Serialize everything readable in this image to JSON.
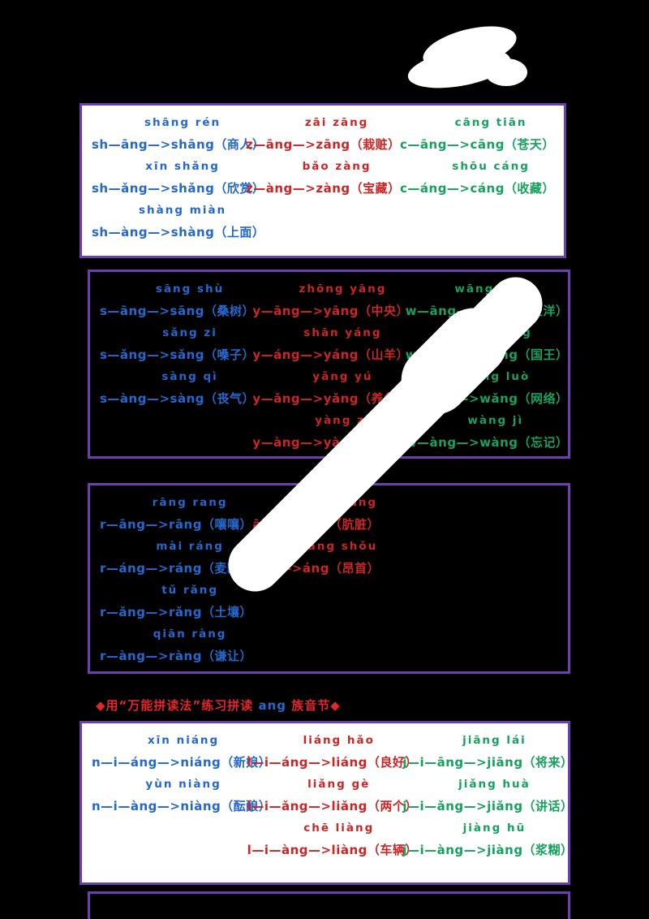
{
  "colors": {
    "blue": "#2468cd",
    "red": "#cc2525",
    "green": "#17a15e",
    "purple": "#6d3fae",
    "header_red": "#e4252b",
    "page_bg": "#000000"
  },
  "header": {
    "prefix": "◆用“万能拼读法”练习拼读 ",
    "highlight": "ang",
    "suffix": " 族音节◆"
  },
  "boxes": [
    {
      "id": "box1",
      "columns": [
        {
          "color": "blue",
          "entries": [
            {
              "word": "shāng rén",
              "formula": "sh—āng—>shāng（商人）"
            },
            {
              "word": "xīn shǎng",
              "formula": "sh—ǎng—>shǎng（欣赏）"
            },
            {
              "word": "shàng miàn",
              "formula": "sh—àng—>shàng（上面）"
            }
          ]
        },
        {
          "color": "red",
          "entries": [
            {
              "word": "zāi zāng",
              "formula": "z—āng—>zāng（栽赃）"
            },
            {
              "word": "bǎo zàng",
              "formula": "z—àng—>zàng（宝藏）"
            }
          ]
        },
        {
          "color": "green",
          "entries": [
            {
              "word": "cāng tiān",
              "formula": "c—āng—>cāng（苍天）"
            },
            {
              "word": "shōu cáng",
              "formula": "c—áng—>cáng（收藏）"
            }
          ]
        }
      ]
    },
    {
      "id": "box2",
      "columns": [
        {
          "color": "blue",
          "entries": [
            {
              "word": "sāng shù",
              "formula": "s—āng—>sāng（桑树）"
            },
            {
              "word": "sǎng zi",
              "formula": "s—ǎng—>sǎng（嗓子）"
            },
            {
              "word": "sàng qì",
              "formula": "s—àng—>sàng（丧气）"
            }
          ]
        },
        {
          "color": "red",
          "entries": [
            {
              "word": "zhōng yāng",
              "formula": "y—āng—>yāng（中央）"
            },
            {
              "word": "shān yáng",
              "formula": "y—áng—>yáng（山羊）"
            },
            {
              "word": "yǎng yú",
              "formula": "y—ǎng—>yǎng（养鱼）"
            },
            {
              "word": "yàng zi",
              "formula": "y—àng—>yàng（样子）"
            }
          ]
        },
        {
          "color": "green",
          "entries": [
            {
              "word": "wāng yáng",
              "formula": "w—āng—>wāng（汪洋）"
            },
            {
              "word": "guó wáng",
              "formula": "w—áng—>wáng（国王）"
            },
            {
              "word": "wǎng luò",
              "formula": "w—ǎng—>wǎng（网络）"
            },
            {
              "word": "wàng jì",
              "formula": "w—àng—>wàng（忘记）"
            }
          ]
        }
      ]
    },
    {
      "id": "box3",
      "columns": [
        {
          "color": "blue",
          "entries": [
            {
              "word": "rāng rang",
              "formula": "r—āng—>rāng（嚷嚷）"
            },
            {
              "word": "mài ráng",
              "formula": "r—áng—>ráng（麦瓤）"
            },
            {
              "word": "tǔ rǎng",
              "formula": "r—ǎng—>rǎng（土壤）"
            },
            {
              "word": "qiān ràng",
              "formula": "r—àng—>ràng（谦让）"
            }
          ]
        },
        {
          "color": "red",
          "entries": [
            {
              "word": "āng zāng",
              "formula": "āng—>āng（肮脏）"
            },
            {
              "word": "áng shǒu",
              "formula": "áng—>áng（昂首）"
            }
          ]
        },
        {
          "color": "green",
          "entries": []
        }
      ]
    },
    {
      "id": "box4",
      "columns": [
        {
          "color": "blue",
          "entries": [
            {
              "word": "xīn niáng",
              "formula": "n—i—áng—>niáng（新娘）"
            },
            {
              "word": "yùn niàng",
              "formula": "n—i—àng—>niàng（酝酿）"
            }
          ]
        },
        {
          "color": "red",
          "entries": [
            {
              "word": "liáng hǎo",
              "formula": "l—i—áng—>liáng（良好）"
            },
            {
              "word": "liǎng gè",
              "formula": "l—i—ǎng—>liǎng（两个）"
            },
            {
              "word": "chē liàng",
              "formula": "l—i—àng—>liàng（车辆）"
            }
          ]
        },
        {
          "color": "green",
          "entries": [
            {
              "word": "jiāng lái",
              "formula": "j—i—āng—>jiāng（将来）"
            },
            {
              "word": "jiǎng huà",
              "formula": "j—i—ǎng—>jiǎng（讲话）"
            },
            {
              "word": "jiàng hū",
              "formula": "j—i—àng—>jiàng（浆糊）"
            }
          ]
        }
      ]
    }
  ]
}
